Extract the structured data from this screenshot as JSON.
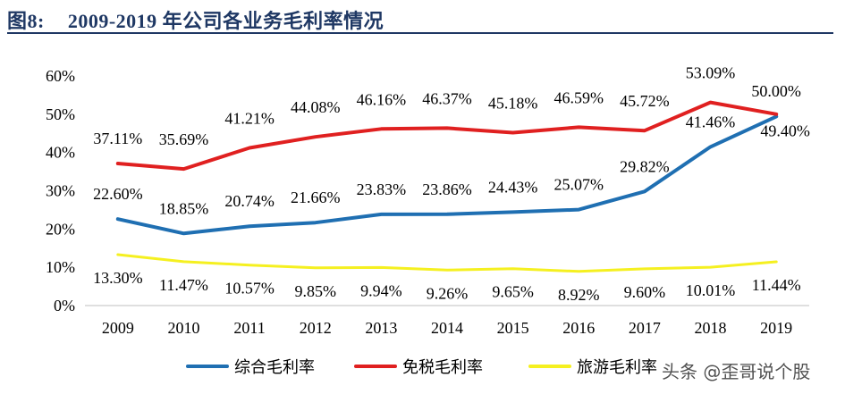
{
  "header": {
    "figure_no": "图8:",
    "title": "2009-2019 年公司各业务毛利率情况"
  },
  "watermark": "头条 @歪哥说个股",
  "chart_data": {
    "type": "line",
    "title": "2009-2019 年公司各业务毛利率情况",
    "xlabel": "",
    "ylabel": "",
    "x": [
      "2009",
      "2010",
      "2011",
      "2012",
      "2013",
      "2014",
      "2015",
      "2016",
      "2017",
      "2018",
      "2019"
    ],
    "ylim": [
      0,
      60
    ],
    "yticks": [
      "0%",
      "10%",
      "20%",
      "30%",
      "40%",
      "50%",
      "60%"
    ],
    "grid": false,
    "legend_position": "bottom",
    "series": [
      {
        "name": "综合毛利率",
        "color": "#1f6fb2",
        "values": [
          22.6,
          18.85,
          20.74,
          21.66,
          23.83,
          23.86,
          24.43,
          25.07,
          29.82,
          41.46,
          49.4
        ],
        "labels": [
          "22.60%",
          "18.85%",
          "20.74%",
          "21.66%",
          "23.83%",
          "23.86%",
          "24.43%",
          "25.07%",
          "29.82%",
          "41.46%",
          "49.40%"
        ]
      },
      {
        "name": "免税毛利率",
        "color": "#e02020",
        "values": [
          37.11,
          35.69,
          41.21,
          44.08,
          46.16,
          46.37,
          45.18,
          46.59,
          45.72,
          53.09,
          50.0
        ],
        "labels": [
          "37.11%",
          "35.69%",
          "41.21%",
          "44.08%",
          "46.16%",
          "46.37%",
          "45.18%",
          "46.59%",
          "45.72%",
          "53.09%",
          "50.00%"
        ]
      },
      {
        "name": "旅游毛利率",
        "color": "#f5f020",
        "values": [
          13.3,
          11.47,
          10.57,
          9.85,
          9.94,
          9.26,
          9.65,
          8.92,
          9.6,
          10.01,
          11.44
        ],
        "labels": [
          "13.30%",
          "11.47%",
          "10.57%",
          "9.85%",
          "9.94%",
          "9.26%",
          "9.65%",
          "8.92%",
          "9.60%",
          "10.01%",
          "11.44%"
        ]
      }
    ]
  }
}
